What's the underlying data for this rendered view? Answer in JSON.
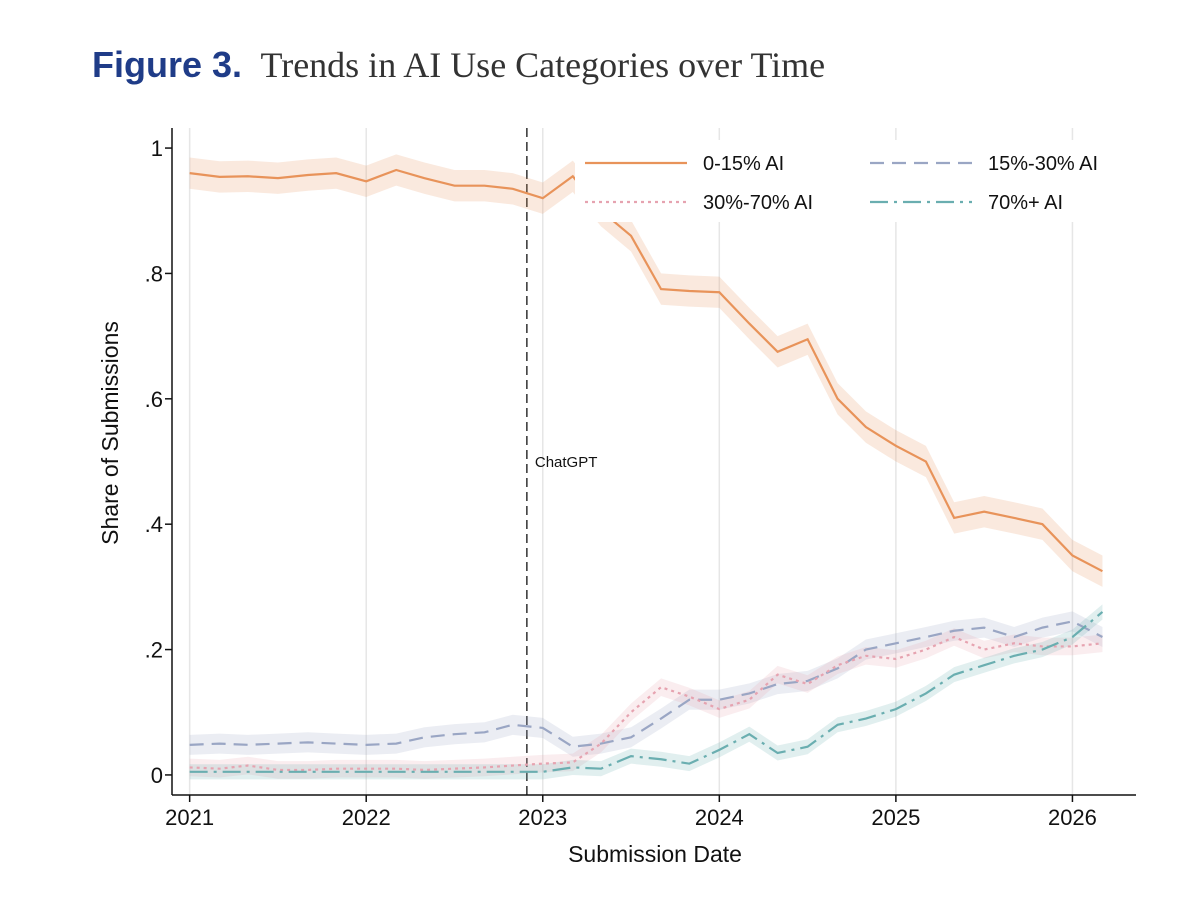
{
  "chart_data": {
    "type": "line",
    "figure_label": "Figure 3.",
    "title": "Trends in AI Use Categories over Time",
    "x_label": "Submission Date",
    "y_label": "Share of Submissions",
    "x": [
      2021,
      2021.17,
      2021.33,
      2021.5,
      2021.67,
      2021.83,
      2022,
      2022.17,
      2022.33,
      2022.5,
      2022.67,
      2022.83,
      2023,
      2023.17,
      2023.33,
      2023.5,
      2023.67,
      2023.83,
      2024,
      2024.17,
      2024.33,
      2024.5,
      2024.67,
      2024.83,
      2025,
      2025.17,
      2025.33,
      2025.5,
      2025.67,
      2025.83,
      2026,
      2026.17
    ],
    "series": [
      {
        "name": "0-15% AI",
        "color": "#e8935a",
        "style": "solid",
        "ci": 0.025,
        "values": [
          0.96,
          0.954,
          0.955,
          0.952,
          0.957,
          0.96,
          0.947,
          0.965,
          0.952,
          0.94,
          0.94,
          0.935,
          0.92,
          0.955,
          0.9,
          0.86,
          0.775,
          0.772,
          0.77,
          0.72,
          0.675,
          0.695,
          0.6,
          0.555,
          0.525,
          0.5,
          0.41,
          0.42,
          0.41,
          0.4,
          0.35,
          0.325
        ]
      },
      {
        "name": "15%-30% AI",
        "color": "#9aa6c4",
        "style": "dash",
        "ci": 0.016,
        "values": [
          0.048,
          0.05,
          0.048,
          0.05,
          0.052,
          0.05,
          0.048,
          0.05,
          0.06,
          0.065,
          0.068,
          0.08,
          0.075,
          0.045,
          0.05,
          0.06,
          0.09,
          0.12,
          0.12,
          0.13,
          0.145,
          0.15,
          0.17,
          0.2,
          0.21,
          0.22,
          0.23,
          0.235,
          0.22,
          0.235,
          0.245,
          0.22
        ]
      },
      {
        "name": "30%-70% AI",
        "color": "#e6a3b0",
        "style": "dot",
        "ci": 0.014,
        "values": [
          0.012,
          0.01,
          0.015,
          0.008,
          0.008,
          0.01,
          0.01,
          0.01,
          0.008,
          0.01,
          0.012,
          0.015,
          0.018,
          0.02,
          0.05,
          0.1,
          0.14,
          0.125,
          0.105,
          0.12,
          0.16,
          0.145,
          0.175,
          0.19,
          0.185,
          0.2,
          0.22,
          0.2,
          0.21,
          0.205,
          0.205,
          0.21
        ]
      },
      {
        "name": "70%+ AI",
        "color": "#6aaeb0",
        "style": "dashdot",
        "ci": 0.012,
        "values": [
          0.005,
          0.005,
          0.005,
          0.005,
          0.005,
          0.005,
          0.005,
          0.005,
          0.005,
          0.005,
          0.005,
          0.005,
          0.005,
          0.012,
          0.01,
          0.03,
          0.025,
          0.018,
          0.04,
          0.065,
          0.035,
          0.045,
          0.08,
          0.09,
          0.105,
          0.13,
          0.16,
          0.175,
          0.19,
          0.2,
          0.22,
          0.26
        ]
      }
    ],
    "xlim": [
      2020.9,
      2026.36
    ],
    "ylim": [
      -0.032,
      1.032
    ],
    "xticks": [
      2021,
      2022,
      2023,
      2024,
      2025,
      2026
    ],
    "yticks": [
      0,
      {
        "value": 0.2,
        "label": ".2"
      },
      {
        "value": 0.4,
        "label": ".4"
      },
      {
        "value": 0.6,
        "label": ".6"
      },
      {
        "value": 0.8,
        "label": ".8"
      },
      1
    ],
    "grid": "x",
    "annotation": {
      "text": "ChatGPT",
      "x": 2022.91
    }
  }
}
